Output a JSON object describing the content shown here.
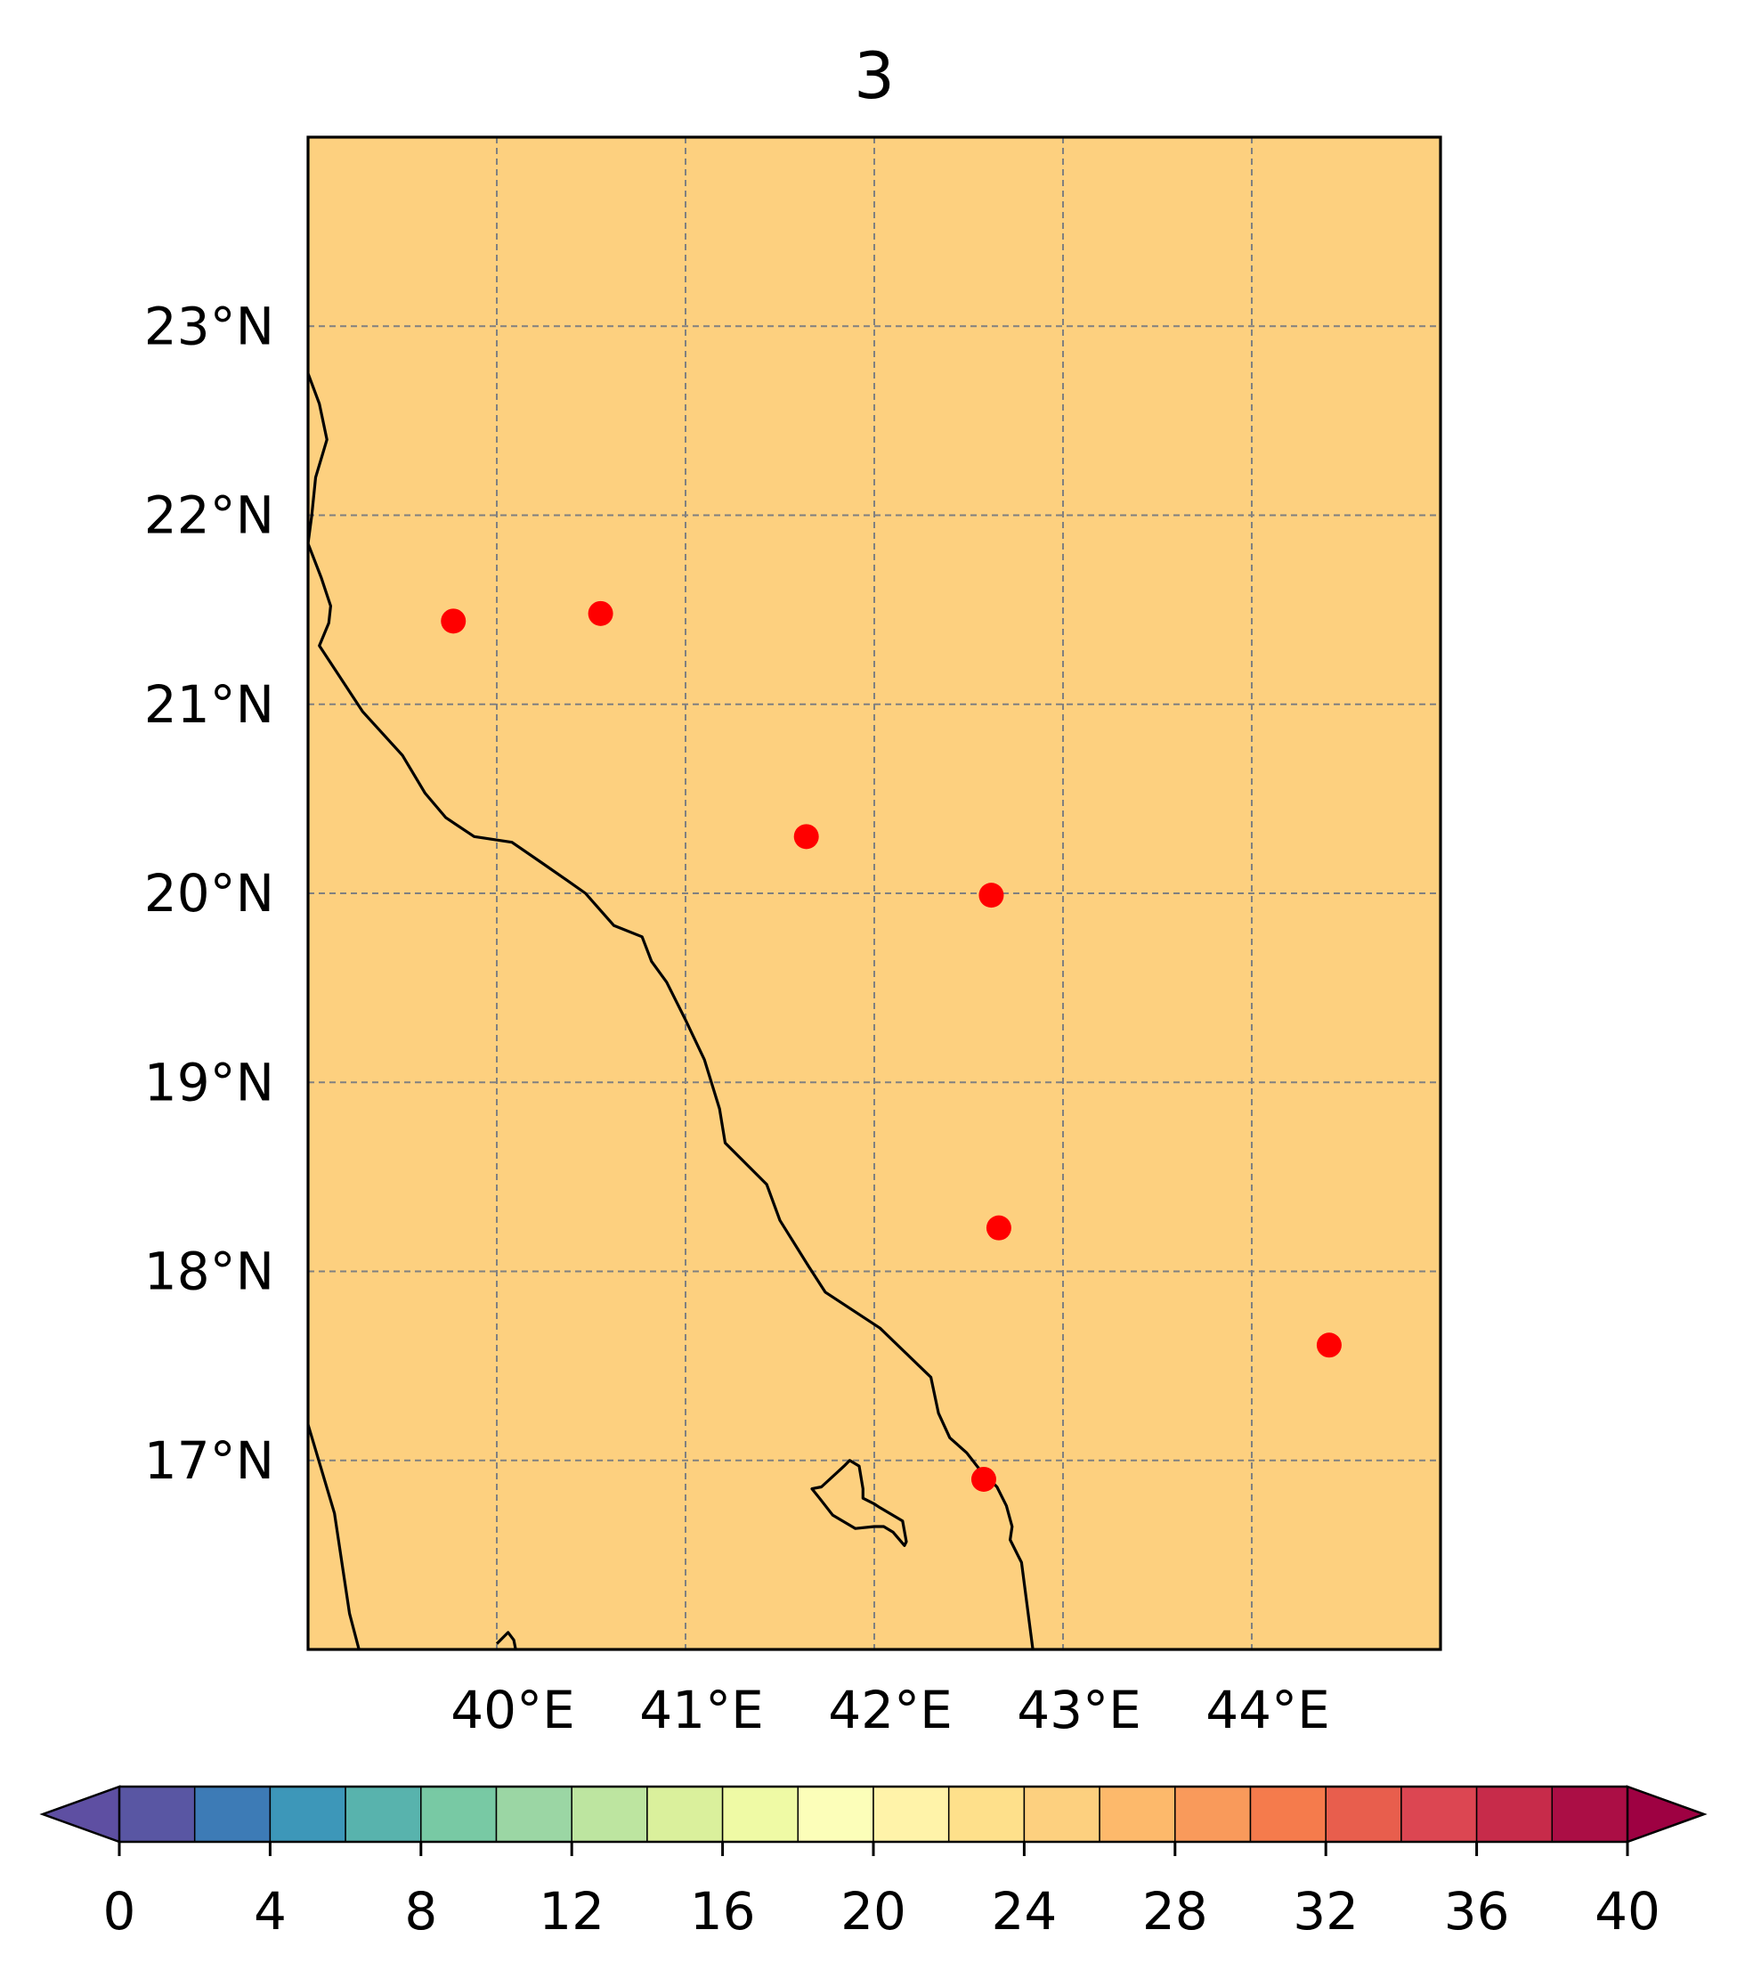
{
  "title": "3",
  "map": {
    "background_color": "#fdd07f",
    "lon_range": [
      39.0,
      45.0
    ],
    "lat_range": [
      16.0,
      24.0
    ],
    "gridlines": true,
    "lon_ticks": [
      40,
      41,
      42,
      43,
      44
    ],
    "lon_tick_labels": [
      "40°E",
      "41°E",
      "42°E",
      "43°E",
      "44°E"
    ],
    "lat_ticks": [
      17,
      18,
      19,
      20,
      21,
      22,
      23
    ],
    "lat_tick_labels": [
      "17°N",
      "18°N",
      "19°N",
      "20°N",
      "21°N",
      "22°N",
      "23°N"
    ],
    "station_color": "#ff0000",
    "stations": [
      {
        "lon": 39.77,
        "lat": 21.44
      },
      {
        "lon": 40.55,
        "lat": 21.48
      },
      {
        "lon": 41.64,
        "lat": 20.3
      },
      {
        "lon": 42.62,
        "lat": 19.99
      },
      {
        "lon": 42.66,
        "lat": 18.23
      },
      {
        "lon": 42.58,
        "lat": 16.9
      },
      {
        "lon": 44.41,
        "lat": 17.61
      }
    ],
    "coastlines": [
      [
        [
          39.0,
          22.75
        ],
        [
          39.06,
          22.59
        ],
        [
          39.1,
          22.4
        ],
        [
          39.04,
          22.2
        ],
        [
          39.02,
          22.0
        ],
        [
          39.0,
          21.85
        ]
      ],
      [
        [
          39.0,
          21.85
        ],
        [
          39.07,
          21.67
        ],
        [
          39.12,
          21.52
        ],
        [
          39.11,
          21.43
        ],
        [
          39.06,
          21.31
        ],
        [
          39.29,
          20.96
        ],
        [
          39.5,
          20.73
        ],
        [
          39.62,
          20.53
        ],
        [
          39.73,
          20.4
        ],
        [
          39.88,
          20.3
        ],
        [
          40.08,
          20.27
        ],
        [
          40.24,
          20.16
        ],
        [
          40.37,
          20.07
        ],
        [
          40.47,
          20.0
        ],
        [
          40.62,
          19.83
        ],
        [
          40.77,
          19.77
        ],
        [
          40.82,
          19.64
        ],
        [
          40.9,
          19.53
        ],
        [
          41.0,
          19.33
        ],
        [
          41.1,
          19.12
        ],
        [
          41.18,
          18.86
        ],
        [
          41.21,
          18.68
        ],
        [
          41.43,
          18.46
        ],
        [
          41.5,
          18.27
        ],
        [
          41.65,
          18.03
        ],
        [
          41.74,
          17.89
        ],
        [
          42.03,
          17.7
        ],
        [
          42.3,
          17.44
        ],
        [
          42.34,
          17.25
        ],
        [
          42.4,
          17.12
        ],
        [
          42.49,
          17.04
        ],
        [
          42.56,
          16.95
        ],
        [
          42.65,
          16.86
        ],
        [
          42.7,
          16.76
        ],
        [
          42.73,
          16.65
        ],
        [
          42.72,
          16.58
        ],
        [
          42.78,
          16.46
        ],
        [
          42.84,
          16.0
        ]
      ],
      [
        [
          39.0,
          17.19
        ],
        [
          39.14,
          16.72
        ],
        [
          39.22,
          16.19
        ],
        [
          39.27,
          16.0
        ]
      ],
      [
        [
          40.0,
          16.03
        ],
        [
          40.06,
          16.09
        ],
        [
          40.09,
          16.05
        ],
        [
          40.1,
          16.0
        ]
      ]
    ],
    "islands": [
      [
        [
          41.87,
          17.0
        ],
        [
          41.92,
          16.97
        ],
        [
          41.94,
          16.85
        ],
        [
          41.94,
          16.8
        ],
        [
          42.0,
          16.77
        ],
        [
          42.03,
          16.75
        ],
        [
          42.15,
          16.68
        ],
        [
          42.17,
          16.57
        ],
        [
          42.16,
          16.55
        ],
        [
          42.1,
          16.62
        ],
        [
          42.05,
          16.65
        ],
        [
          42.0,
          16.65
        ],
        [
          41.9,
          16.64
        ],
        [
          41.78,
          16.71
        ],
        [
          41.71,
          16.8
        ],
        [
          41.67,
          16.85
        ],
        [
          41.72,
          16.86
        ],
        [
          41.84,
          16.97
        ]
      ]
    ]
  },
  "colorbar": {
    "levels": [
      0,
      2,
      4,
      6,
      8,
      10,
      12,
      14,
      16,
      18,
      20,
      22,
      24,
      26,
      28,
      30,
      32,
      34,
      36,
      38,
      40
    ],
    "colors": [
      "#5956a3",
      "#3d7bb6",
      "#3d97b9",
      "#58b3ad",
      "#78c9a4",
      "#9bd6a4",
      "#bde5a0",
      "#daf09c",
      "#effaa5",
      "#fcfeb9",
      "#fff3a9",
      "#fee08b",
      "#fdd07f",
      "#fdb96b",
      "#f99a5b",
      "#f57b4c",
      "#e85e4d",
      "#dc4652",
      "#c72b4a",
      "#ab0e45"
    ],
    "under_color": "#5e4fa2",
    "over_color": "#9e0142",
    "tick_values": [
      0,
      4,
      8,
      12,
      16,
      20,
      24,
      28,
      32,
      36,
      40
    ],
    "tick_labels": [
      "0",
      "4",
      "8",
      "12",
      "16",
      "20",
      "24",
      "28",
      "32",
      "36",
      "40"
    ]
  }
}
